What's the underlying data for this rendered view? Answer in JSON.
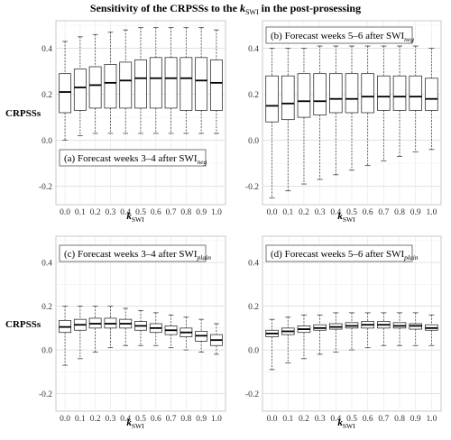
{
  "figure": {
    "title_prefix": "Sensitivity of the CRPSSs to the ",
    "title_k": "k",
    "title_k_sub": "SWI",
    "title_suffix": " in the post-prosessing"
  },
  "chart_data": [
    {
      "type": "box",
      "panel": "a",
      "title": "(a) Forecast weeks 3–4 after SWI",
      "title_sub": "neg",
      "xlabel": "k",
      "xlabel_sub": "SWI",
      "ylabel": "CRPSSs",
      "ylim": [
        -0.28,
        0.52
      ],
      "yticks": [
        "-0.2",
        "0.0",
        "0.2",
        "0.4"
      ],
      "grid": true,
      "categories": [
        "0.0",
        "0.1",
        "0.2",
        "0.3",
        "0.4",
        "0.5",
        "0.6",
        "0.7",
        "0.8",
        "0.9",
        "1.0"
      ],
      "boxes": [
        {
          "low": 0.0,
          "q1": 0.12,
          "median": 0.21,
          "q3": 0.29,
          "high": 0.43
        },
        {
          "low": 0.02,
          "q1": 0.13,
          "median": 0.23,
          "q3": 0.31,
          "high": 0.45
        },
        {
          "low": 0.03,
          "q1": 0.14,
          "median": 0.24,
          "q3": 0.32,
          "high": 0.46
        },
        {
          "low": 0.03,
          "q1": 0.14,
          "median": 0.25,
          "q3": 0.33,
          "high": 0.47
        },
        {
          "low": 0.03,
          "q1": 0.14,
          "median": 0.26,
          "q3": 0.34,
          "high": 0.48
        },
        {
          "low": 0.03,
          "q1": 0.14,
          "median": 0.27,
          "q3": 0.35,
          "high": 0.49
        },
        {
          "low": 0.03,
          "q1": 0.14,
          "median": 0.27,
          "q3": 0.36,
          "high": 0.49
        },
        {
          "low": 0.03,
          "q1": 0.14,
          "median": 0.27,
          "q3": 0.36,
          "high": 0.49
        },
        {
          "low": 0.03,
          "q1": 0.13,
          "median": 0.27,
          "q3": 0.36,
          "high": 0.49
        },
        {
          "low": 0.03,
          "q1": 0.13,
          "median": 0.26,
          "q3": 0.36,
          "high": 0.49
        },
        {
          "low": 0.03,
          "q1": 0.13,
          "median": 0.25,
          "q3": 0.35,
          "high": 0.48
        }
      ]
    },
    {
      "type": "box",
      "panel": "b",
      "title": "(b) Forecast weeks 5–6 after SWI",
      "title_sub": "neg",
      "xlabel": "k",
      "xlabel_sub": "SWI",
      "ylabel": "",
      "ylim": [
        -0.28,
        0.52
      ],
      "yticks": [
        "-0.2",
        "0.0",
        "0.2",
        "0.4"
      ],
      "grid": true,
      "categories": [
        "0.0",
        "0.1",
        "0.2",
        "0.3",
        "0.4",
        "0.5",
        "0.6",
        "0.7",
        "0.8",
        "0.9",
        "1.0"
      ],
      "boxes": [
        {
          "low": -0.25,
          "q1": 0.08,
          "median": 0.15,
          "q3": 0.28,
          "high": 0.4
        },
        {
          "low": -0.22,
          "q1": 0.09,
          "median": 0.16,
          "q3": 0.28,
          "high": 0.4
        },
        {
          "low": -0.19,
          "q1": 0.1,
          "median": 0.17,
          "q3": 0.29,
          "high": 0.4
        },
        {
          "low": -0.17,
          "q1": 0.11,
          "median": 0.17,
          "q3": 0.29,
          "high": 0.41
        },
        {
          "low": -0.15,
          "q1": 0.12,
          "median": 0.18,
          "q3": 0.29,
          "high": 0.41
        },
        {
          "low": -0.13,
          "q1": 0.12,
          "median": 0.18,
          "q3": 0.29,
          "high": 0.41
        },
        {
          "low": -0.11,
          "q1": 0.12,
          "median": 0.19,
          "q3": 0.29,
          "high": 0.41
        },
        {
          "low": -0.09,
          "q1": 0.13,
          "median": 0.19,
          "q3": 0.28,
          "high": 0.41
        },
        {
          "low": -0.07,
          "q1": 0.13,
          "median": 0.19,
          "q3": 0.28,
          "high": 0.41
        },
        {
          "low": -0.05,
          "q1": 0.13,
          "median": 0.19,
          "q3": 0.28,
          "high": 0.41
        },
        {
          "low": -0.04,
          "q1": 0.13,
          "median": 0.18,
          "q3": 0.27,
          "high": 0.4
        }
      ]
    },
    {
      "type": "box",
      "panel": "c",
      "title": "(c) Forecast weeks 3–4 after SWI",
      "title_sub": "plain",
      "xlabel": "k",
      "xlabel_sub": "SWI",
      "ylabel": "CRPSSs",
      "ylim": [
        -0.28,
        0.52
      ],
      "yticks": [
        "-0.2",
        "0.0",
        "0.2",
        "0.4"
      ],
      "grid": true,
      "categories": [
        "0.0",
        "0.1",
        "0.2",
        "0.3",
        "0.4",
        "0.5",
        "0.6",
        "0.7",
        "0.8",
        "0.9",
        "1.0"
      ],
      "boxes": [
        {
          "low": -0.07,
          "q1": 0.08,
          "median": 0.105,
          "q3": 0.135,
          "high": 0.2
        },
        {
          "low": -0.04,
          "q1": 0.09,
          "median": 0.115,
          "q3": 0.14,
          "high": 0.2
        },
        {
          "low": -0.01,
          "q1": 0.1,
          "median": 0.12,
          "q3": 0.145,
          "high": 0.2
        },
        {
          "low": 0.01,
          "q1": 0.1,
          "median": 0.12,
          "q3": 0.145,
          "high": 0.2
        },
        {
          "low": 0.02,
          "q1": 0.1,
          "median": 0.12,
          "q3": 0.14,
          "high": 0.19
        },
        {
          "low": 0.02,
          "q1": 0.09,
          "median": 0.11,
          "q3": 0.13,
          "high": 0.18
        },
        {
          "low": 0.02,
          "q1": 0.08,
          "median": 0.1,
          "q3": 0.12,
          "high": 0.17
        },
        {
          "low": 0.01,
          "q1": 0.07,
          "median": 0.09,
          "q3": 0.11,
          "high": 0.16
        },
        {
          "low": 0.0,
          "q1": 0.06,
          "median": 0.08,
          "q3": 0.1,
          "high": 0.15
        },
        {
          "low": -0.01,
          "q1": 0.04,
          "median": 0.065,
          "q3": 0.085,
          "high": 0.14
        },
        {
          "low": -0.02,
          "q1": 0.02,
          "median": 0.045,
          "q3": 0.07,
          "high": 0.12
        }
      ]
    },
    {
      "type": "box",
      "panel": "d",
      "title": "(d) Forecast weeks 5–6 after SWI",
      "title_sub": "plain",
      "xlabel": "k",
      "xlabel_sub": "SWI",
      "ylabel": "",
      "ylim": [
        -0.28,
        0.52
      ],
      "yticks": [
        "-0.2",
        "0.0",
        "0.2",
        "0.4"
      ],
      "grid": true,
      "categories": [
        "0.0",
        "0.1",
        "0.2",
        "0.3",
        "0.4",
        "0.5",
        "0.6",
        "0.7",
        "0.8",
        "0.9",
        "1.0"
      ],
      "boxes": [
        {
          "low": -0.09,
          "q1": 0.06,
          "median": 0.075,
          "q3": 0.09,
          "high": 0.14
        },
        {
          "low": -0.06,
          "q1": 0.07,
          "median": 0.085,
          "q3": 0.1,
          "high": 0.15
        },
        {
          "low": -0.04,
          "q1": 0.08,
          "median": 0.095,
          "q3": 0.11,
          "high": 0.16
        },
        {
          "low": -0.02,
          "q1": 0.09,
          "median": 0.1,
          "q3": 0.115,
          "high": 0.16
        },
        {
          "low": -0.01,
          "q1": 0.095,
          "median": 0.105,
          "q3": 0.12,
          "high": 0.17
        },
        {
          "low": 0.0,
          "q1": 0.1,
          "median": 0.11,
          "q3": 0.125,
          "high": 0.17
        },
        {
          "low": 0.01,
          "q1": 0.1,
          "median": 0.115,
          "q3": 0.13,
          "high": 0.17
        },
        {
          "low": 0.02,
          "q1": 0.1,
          "median": 0.115,
          "q3": 0.13,
          "high": 0.17
        },
        {
          "low": 0.02,
          "q1": 0.1,
          "median": 0.11,
          "q3": 0.125,
          "high": 0.17
        },
        {
          "low": 0.02,
          "q1": 0.095,
          "median": 0.11,
          "q3": 0.12,
          "high": 0.17
        },
        {
          "low": 0.02,
          "q1": 0.09,
          "median": 0.1,
          "q3": 0.115,
          "high": 0.16
        }
      ]
    }
  ]
}
